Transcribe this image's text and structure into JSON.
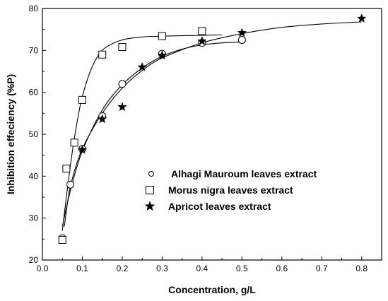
{
  "chart_data": {
    "type": "scatter",
    "xlabel": "Concentration, g/L",
    "ylabel": "Inhibition effeciency (%P)",
    "xlim": [
      0.0,
      0.85
    ],
    "ylim": [
      20,
      80
    ],
    "xticks": [
      "0.0",
      "0.1",
      "0.2",
      "0.3",
      "0.4",
      "0.5",
      "0.6",
      "0.7",
      "0.8"
    ],
    "yticks": [
      "20",
      "30",
      "40",
      "50",
      "60",
      "70",
      "80"
    ],
    "grid": false,
    "legend_position": "center-right",
    "series": [
      {
        "name": "Alhagi Mauroum leaves extract",
        "marker": "circle-open",
        "x": [
          0.05,
          0.07,
          0.1,
          0.15,
          0.2,
          0.3,
          0.4,
          0.5
        ],
        "y": [
          25.2,
          38.0,
          46.5,
          54.3,
          62.0,
          69.2,
          71.8,
          72.5
        ],
        "fit": [
          [
            0.05,
            28.0
          ],
          [
            0.07,
            36.5
          ],
          [
            0.1,
            46.0
          ],
          [
            0.15,
            55.8
          ],
          [
            0.2,
            61.8
          ],
          [
            0.25,
            65.8
          ],
          [
            0.3,
            68.6
          ],
          [
            0.35,
            70.3
          ],
          [
            0.4,
            71.3
          ],
          [
            0.45,
            71.8
          ],
          [
            0.5,
            72.0
          ]
        ]
      },
      {
        "name": "Morus nigra leaves extract",
        "marker": "square-open",
        "x": [
          0.05,
          0.06,
          0.08,
          0.1,
          0.15,
          0.2,
          0.3,
          0.4
        ],
        "y": [
          24.8,
          41.8,
          48.0,
          58.2,
          69.0,
          70.8,
          73.4,
          74.6
        ],
        "fit": [
          [
            0.05,
            27.0
          ],
          [
            0.06,
            35.0
          ],
          [
            0.07,
            42.5
          ],
          [
            0.08,
            49.0
          ],
          [
            0.09,
            54.5
          ],
          [
            0.1,
            59.0
          ],
          [
            0.12,
            65.0
          ],
          [
            0.14,
            68.8
          ],
          [
            0.16,
            70.8
          ],
          [
            0.2,
            72.5
          ],
          [
            0.25,
            73.2
          ],
          [
            0.3,
            73.4
          ],
          [
            0.4,
            73.6
          ],
          [
            0.45,
            73.7
          ]
        ]
      },
      {
        "name": "Apricot leaves extract",
        "marker": "star",
        "x": [
          0.1,
          0.15,
          0.2,
          0.25,
          0.3,
          0.4,
          0.5,
          0.8
        ],
        "y": [
          46.3,
          53.6,
          56.5,
          66.0,
          68.8,
          72.2,
          74.2,
          77.6
        ],
        "fit": [
          [
            0.055,
            28.0
          ],
          [
            0.07,
            37.5
          ],
          [
            0.1,
            46.5
          ],
          [
            0.15,
            55.0
          ],
          [
            0.2,
            61.0
          ],
          [
            0.25,
            65.2
          ],
          [
            0.3,
            68.2
          ],
          [
            0.4,
            71.8
          ],
          [
            0.5,
            74.0
          ],
          [
            0.6,
            75.5
          ],
          [
            0.7,
            76.3
          ],
          [
            0.8,
            76.8
          ]
        ]
      }
    ]
  }
}
